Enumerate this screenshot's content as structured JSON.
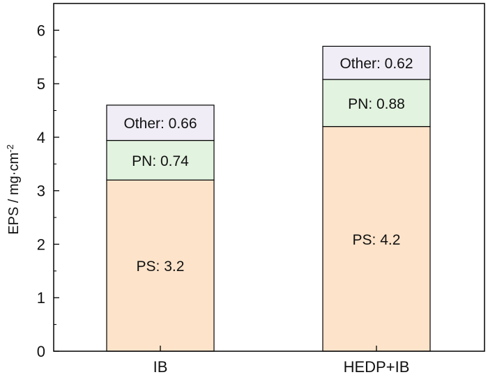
{
  "chart_data": {
    "type": "bar",
    "stacked": true,
    "categories": [
      "IB",
      "HEDP+IB"
    ],
    "series": [
      {
        "key": "PS",
        "values": [
          3.2,
          4.2
        ],
        "labels": [
          "PS: 3.2",
          "PS: 4.2"
        ],
        "color": "#fde3c9"
      },
      {
        "key": "PN",
        "values": [
          0.74,
          0.88
        ],
        "labels": [
          "PN: 0.74",
          "PN: 0.88"
        ],
        "color": "#e2f3df"
      },
      {
        "key": "Other",
        "values": [
          0.66,
          0.62
        ],
        "labels": [
          "Other: 0.66",
          "Other: 0.62"
        ],
        "color": "#f0edf6"
      }
    ],
    "xlabel": "",
    "ylabel": "EPS / mg·cm",
    "ylabel_sup": "-2",
    "ylim": [
      0,
      6.5
    ],
    "yticks": [
      0,
      1,
      2,
      3,
      4,
      5,
      6
    ],
    "grid": false,
    "legend": "none"
  }
}
